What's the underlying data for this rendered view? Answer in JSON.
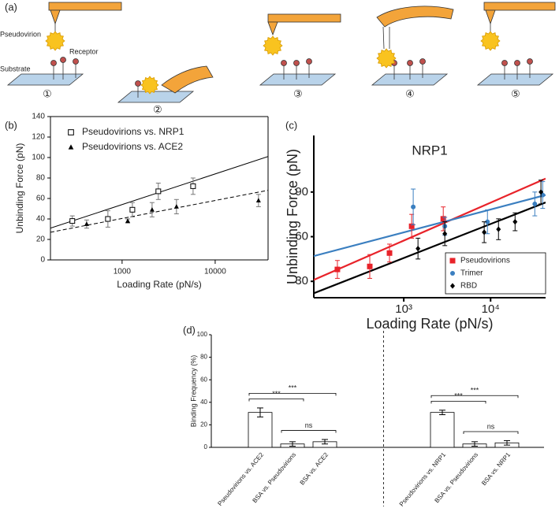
{
  "diagram": {
    "label": "(a)",
    "pseudovirion": "Pseudovirion",
    "receptor": "Receptor",
    "substrate": "Substrate",
    "steps": [
      "①",
      "②",
      "③",
      "④",
      "⑤"
    ]
  },
  "chart_data": [
    {
      "type": "scatter",
      "panel": "(b)",
      "xlabel": "Loading Rate (pN/s)",
      "ylabel": "Unbinding Force (pN)",
      "xscale": "log",
      "xlim": [
        170,
        37000
      ],
      "xticks": [
        1000,
        10000
      ],
      "ylim": [
        0,
        140
      ],
      "yticks": [
        0,
        20,
        40,
        60,
        80,
        100,
        120,
        140
      ],
      "legend": "upper left",
      "series": [
        {
          "name": "Pseudovirions vs. NRP1",
          "color": "#000000",
          "marker": "open-square",
          "x": [
            292,
            704,
            1290,
            2450,
            5790
          ],
          "values": [
            38,
            40,
            49,
            67,
            72
          ],
          "errors": [
            5,
            8,
            7,
            8,
            8
          ]
        },
        {
          "name": "Pseudovirions vs. ACE2",
          "color": "#000000",
          "marker": "triangle",
          "x": [
            416,
            1150,
            2100,
            3840,
            29200
          ],
          "values": [
            35,
            38,
            49,
            52,
            58
          ],
          "errors": [
            4,
            2,
            7,
            7,
            6
          ]
        }
      ],
      "fits": [
        {
          "x": [
            170,
            37000
          ],
          "values": [
            31,
            101
          ],
          "color": "#000000",
          "dash": false
        },
        {
          "x": [
            170,
            37000
          ],
          "values": [
            27,
            68
          ],
          "color": "#000000",
          "dash": true
        }
      ]
    },
    {
      "type": "scatter",
      "panel": "(c)",
      "title": "NRP1",
      "xlabel": "Loading Rate (pN/s)",
      "ylabel": "Unbinding Force (pN)",
      "xscale": "log",
      "xlim": [
        92,
        43000
      ],
      "xticks": [
        {
          "value": 1000,
          "label": "10³"
        },
        {
          "value": 10000,
          "label": "10⁴"
        }
      ],
      "ylim": [
        19,
        128
      ],
      "yticks": [
        30,
        60,
        90
      ],
      "legend": "lower right",
      "series": [
        {
          "name": "Pseudovirions",
          "color": "#e8232a",
          "marker": "square",
          "x": [
            172,
            406,
            685,
            1233,
            2850
          ],
          "values": [
            38,
            40,
            49,
            67,
            72
          ],
          "errors": [
            6,
            8,
            6,
            8,
            8
          ]
        },
        {
          "name": "Trimer",
          "color": "#3b7fc0",
          "marker": "circle",
          "x": [
            1285,
            2970,
            9200,
            32300,
            39800
          ],
          "values": [
            80,
            67,
            70,
            82,
            88
          ],
          "errors": [
            12,
            6,
            8,
            8,
            9
          ]
        },
        {
          "name": "RBD",
          "color": "#000000",
          "marker": "diamond",
          "x": [
            1458,
            2970,
            8440,
            12330,
            19140,
            38000
          ],
          "values": [
            52,
            62,
            63,
            65,
            70,
            90
          ],
          "errors": [
            7,
            8,
            7,
            7,
            6,
            8
          ]
        }
      ],
      "fits": [
        {
          "x": [
            92,
            43000
          ],
          "values": [
            31,
            99
          ],
          "color": "#e8232a",
          "dash": false
        },
        {
          "x": [
            92,
            43000
          ],
          "values": [
            47,
            88
          ],
          "color": "#3b7fc0",
          "dash": false
        },
        {
          "x": [
            92,
            43000
          ],
          "values": [
            22,
            83
          ],
          "color": "#000000",
          "dash": false
        }
      ]
    },
    {
      "type": "bar",
      "panel": "(d)",
      "ylabel": "Binding Frequency (%)",
      "ylim": [
        0,
        100
      ],
      "yticks": [
        0,
        20,
        40,
        60,
        80,
        100
      ],
      "color": "#ffffff",
      "groups": [
        {
          "categories": [
            "Pseudovirions vs. ACE2",
            "BSA vs. Pseudovirions",
            "BSA vs. ACE2"
          ],
          "values": [
            31,
            3,
            5
          ],
          "errors": [
            4,
            2,
            2
          ],
          "annotations": [
            {
              "text": "***",
              "from": 0,
              "to": 2
            },
            {
              "text": "***",
              "from": 0,
              "to": 1
            },
            {
              "text": "ns",
              "from": 1,
              "to": 2
            }
          ]
        },
        {
          "categories": [
            "Pseudovirions vs. NRP1",
            "BSA vs. Pseudovirions",
            "BSA vs. NRP1"
          ],
          "values": [
            31,
            3,
            4
          ],
          "errors": [
            2,
            2,
            2
          ],
          "annotations": [
            {
              "text": "***",
              "from": 0,
              "to": 2
            },
            {
              "text": "***",
              "from": 0,
              "to": 1
            },
            {
              "text": "ns",
              "from": 1,
              "to": 2
            }
          ]
        }
      ]
    }
  ]
}
